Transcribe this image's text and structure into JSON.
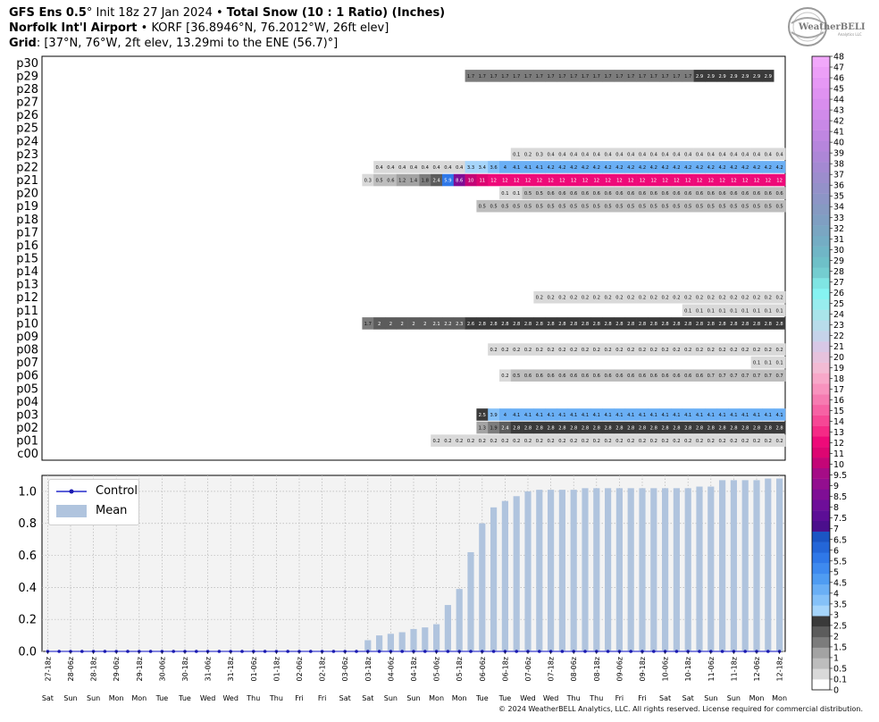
{
  "header": {
    "model": "GFS Ens 0.5",
    "init_text": "Init 18z 27 Jan 2024",
    "product": "Total Snow (10 : 1 Ratio) (Inches)",
    "station_name": "Norfolk Int'l Airport",
    "station_info": "KORF [36.8946°N, 76.2012°W, 26ft elev]",
    "grid_label": "Grid",
    "grid_info": "[37°N, 76°W, 2ft elev, 13.29mi to the ENE (56.7)°]"
  },
  "logo": {
    "text": "WeatherBELL",
    "sub": "Analytics LLC"
  },
  "copyright": "© 2024 WeatherBELL Analytics, LLC. All rights reserved. License required for commercial distribution.",
  "colorbar": {
    "ticks": [
      "0",
      "0.1",
      "0.5",
      "1",
      "1.5",
      "2",
      "2.5",
      "3",
      "3.5",
      "4",
      "4.5",
      "5",
      "5.5",
      "6",
      "6.5",
      "7",
      "7.5",
      "8",
      "8.5",
      "9",
      "9.5",
      "10",
      "11",
      "12",
      "13",
      "14",
      "15",
      "16",
      "17",
      "18",
      "19",
      "20",
      "21",
      "22",
      "23",
      "24",
      "25",
      "26",
      "27",
      "28",
      "29",
      "30",
      "31",
      "32",
      "33",
      "34",
      "35",
      "36",
      "37",
      "38",
      "39",
      "40",
      "41",
      "42",
      "43",
      "44",
      "45",
      "46",
      "47",
      "48"
    ],
    "colors": [
      "#ffffff",
      "#d9d9d9",
      "#bdbdbd",
      "#a3a3a3",
      "#7c7c7c",
      "#5c5c5c",
      "#3a3a3a",
      "#a6d5fb",
      "#85c1f8",
      "#6aaff5",
      "#4f9cf2",
      "#3e8aef",
      "#2f78e8",
      "#2466d8",
      "#1b55c4",
      "#4b0f8c",
      "#5c0e96",
      "#6e0e99",
      "#7f0e95",
      "#930e8f",
      "#a50c86",
      "#c30677",
      "#dd0672",
      "#ee0a79",
      "#f52a86",
      "#f64795",
      "#f662a4",
      "#f67bb1",
      "#f893be",
      "#f7a8c9",
      "#f2bbd4",
      "#e6c2dd",
      "#d8c8e6",
      "#c6d3ea",
      "#b8dcea",
      "#a9e4ea",
      "#98edee",
      "#86f3f2",
      "#7fe5e3",
      "#74cdd0",
      "#6ec0c8",
      "#70b6c6",
      "#74adc4",
      "#7aa6c2",
      "#7f9fc2",
      "#869ac2",
      "#8d95c6",
      "#9491c9",
      "#9c8dcd",
      "#a489d2",
      "#ad86d7",
      "#b685dc",
      "#bf86e1",
      "#c888e6",
      "#d08aea",
      "#d88dee",
      "#df92f1",
      "#e698f5",
      "#ec9ff7",
      "#f1a8fa"
    ]
  },
  "legend": {
    "control_label": "Control",
    "mean_label": "Mean"
  },
  "time_labels": [
    "27-18z",
    "28-06z",
    "28-18z",
    "29-06z",
    "29-18z",
    "30-06z",
    "30-18z",
    "31-06z",
    "31-18z",
    "01-06z",
    "01-18z",
    "02-06z",
    "02-18z",
    "03-06z",
    "03-18z",
    "04-06z",
    "04-18z",
    "05-06z",
    "05-18z",
    "06-06z",
    "06-18z",
    "07-06z",
    "07-18z",
    "08-06z",
    "08-18z",
    "09-06z",
    "09-18z",
    "10-06z",
    "10-18z",
    "11-06z",
    "11-18z",
    "12-06z",
    "12-18z"
  ],
  "day_labels": [
    "Sat",
    "Sun",
    "Sun",
    "Mon",
    "Mon",
    "Tue",
    "Tue",
    "Wed",
    "Wed",
    "Thu",
    "Thu",
    "Fri",
    "Fri",
    "Sat",
    "Sat",
    "Sun",
    "Sun",
    "Mon",
    "Mon",
    "Tue",
    "Tue",
    "Wed",
    "Wed",
    "Thu",
    "Thu",
    "Fri",
    "Fri",
    "Sat",
    "Sat",
    "Sun",
    "Sun",
    "Mon",
    "Mon"
  ],
  "chart_data": [
    {
      "type": "heatmap",
      "title": "Total Snow (10 : 1 Ratio) (Inches)",
      "rows": [
        "p30",
        "p29",
        "p28",
        "p27",
        "p26",
        "p25",
        "p24",
        "p23",
        "p22",
        "p21",
        "p20",
        "p19",
        "p18",
        "p17",
        "p16",
        "p15",
        "p14",
        "p13",
        "p12",
        "p11",
        "p10",
        "p09",
        "p08",
        "p07",
        "p06",
        "p05",
        "p04",
        "p03",
        "p02",
        "p01",
        "c00"
      ],
      "n_times": 65,
      "members": {
        "p29": {
          "start": 37,
          "values": [
            "1.7",
            "1.7",
            "1.7",
            "1.7",
            "1.7",
            "1.7",
            "1.7",
            "1.7",
            "1.7",
            "1.7",
            "1.7",
            "1.7",
            "1.7",
            "1.7",
            "1.7",
            "1.7",
            "1.7",
            "1.7",
            "1.7",
            "1.7",
            "2.9",
            "2.9",
            "2.9",
            "2.9",
            "2.9",
            "2.9",
            "2.9"
          ]
        },
        "p23": {
          "start": 41,
          "values": [
            "0.1",
            "0.2",
            "0.3",
            "0.4",
            "0.4",
            "0.4",
            "0.4",
            "0.4",
            "0.4",
            "0.4",
            "0.4",
            "0.4",
            "0.4",
            "0.4",
            "0.4",
            "0.4",
            "0.4",
            "0.4",
            "0.4",
            "0.4",
            "0.4",
            "0.4",
            "0.4",
            "0.4"
          ]
        },
        "p22": {
          "start": 29,
          "values": [
            "0.4",
            "0.4",
            "0.4",
            "0.4",
            "0.4",
            "0.4",
            "0.4",
            "0.4",
            "3.3",
            "3.4",
            "3.6",
            "4",
            "4.1",
            "4.1",
            "4.1",
            "4.2",
            "4.2",
            "4.2",
            "4.2",
            "4.2",
            "4.2",
            "4.2",
            "4.2",
            "4.2",
            "4.2",
            "4.2",
            "4.2",
            "4.2",
            "4.2",
            "4.2",
            "4.2",
            "4.2",
            "4.2",
            "4.2",
            "4.2",
            "4.2"
          ]
        },
        "p21": {
          "start": 28,
          "values": [
            "0.3",
            "0.5",
            "0.6",
            "1.2",
            "1.4",
            "1.8",
            "2.4",
            "5.9",
            "8.6",
            "10",
            "11",
            "12",
            "12",
            "12",
            "12",
            "12",
            "12",
            "12",
            "12",
            "12",
            "12",
            "12",
            "12",
            "12",
            "12",
            "12",
            "12",
            "12",
            "12",
            "12",
            "12",
            "12",
            "12",
            "12",
            "12",
            "12",
            "12"
          ]
        },
        "p20": {
          "start": 40,
          "values": [
            "0.1",
            "0.1",
            "0.5",
            "0.5",
            "0.6",
            "0.6",
            "0.6",
            "0.6",
            "0.6",
            "0.6",
            "0.6",
            "0.6",
            "0.6",
            "0.6",
            "0.6",
            "0.6",
            "0.6",
            "0.6",
            "0.6",
            "0.6",
            "0.6",
            "0.6",
            "0.6",
            "0.6",
            "0.6"
          ]
        },
        "p19": {
          "start": 38,
          "values": [
            "0.5",
            "0.5",
            "0.5",
            "0.5",
            "0.5",
            "0.5",
            "0.5",
            "0.5",
            "0.5",
            "0.5",
            "0.5",
            "0.5",
            "0.5",
            "0.5",
            "0.5",
            "0.5",
            "0.5",
            "0.5",
            "0.5",
            "0.5",
            "0.5",
            "0.5",
            "0.5",
            "0.5",
            "0.5",
            "0.5",
            "0.5"
          ]
        },
        "p12": {
          "start": 43,
          "values": [
            "0.2",
            "0.2",
            "0.2",
            "0.2",
            "0.2",
            "0.2",
            "0.2",
            "0.2",
            "0.2",
            "0.2",
            "0.2",
            "0.2",
            "0.2",
            "0.2",
            "0.2",
            "0.2",
            "0.2",
            "0.2",
            "0.2",
            "0.2",
            "0.2",
            "0.2"
          ]
        },
        "p11": {
          "start": 56,
          "values": [
            "0.1",
            "0.1",
            "0.1",
            "0.1",
            "0.1",
            "0.1",
            "0.1",
            "0.1",
            "0.1"
          ]
        },
        "p10": {
          "start": 28,
          "values": [
            "1.7",
            "2",
            "2",
            "2",
            "2",
            "2",
            "2.1",
            "2.2",
            "2.3",
            "2.6",
            "2.8",
            "2.8",
            "2.8",
            "2.8",
            "2.8",
            "2.8",
            "2.8",
            "2.8",
            "2.8",
            "2.8",
            "2.8",
            "2.8",
            "2.8",
            "2.8",
            "2.8",
            "2.8",
            "2.8",
            "2.8",
            "2.8",
            "2.8",
            "2.8",
            "2.8",
            "2.8",
            "2.8",
            "2.8",
            "2.8",
            "2.8"
          ]
        },
        "p08": {
          "start": 39,
          "values": [
            "0.2",
            "0.2",
            "0.2",
            "0.2",
            "0.2",
            "0.2",
            "0.2",
            "0.2",
            "0.2",
            "0.2",
            "0.2",
            "0.2",
            "0.2",
            "0.2",
            "0.2",
            "0.2",
            "0.2",
            "0.2",
            "0.2",
            "0.2",
            "0.2",
            "0.2",
            "0.2",
            "0.2",
            "0.2",
            "0.2"
          ]
        },
        "p07": {
          "start": 62,
          "values": [
            "0.1",
            "0.1",
            "0.1"
          ]
        },
        "p06": {
          "start": 40,
          "values": [
            "0.2",
            "0.5",
            "0.6",
            "0.6",
            "0.6",
            "0.6",
            "0.6",
            "0.6",
            "0.6",
            "0.6",
            "0.6",
            "0.6",
            "0.6",
            "0.6",
            "0.6",
            "0.6",
            "0.6",
            "0.6",
            "0.7",
            "0.7",
            "0.7",
            "0.7",
            "0.7",
            "0.7",
            "0.7"
          ]
        },
        "p03": {
          "start": 38,
          "values": [
            "2.5",
            "3.9",
            "4",
            "4.1",
            "4.1",
            "4.1",
            "4.1",
            "4.1",
            "4.1",
            "4.1",
            "4.1",
            "4.1",
            "4.1",
            "4.1",
            "4.1",
            "4.1",
            "4.1",
            "4.1",
            "4.1",
            "4.1",
            "4.1",
            "4.1",
            "4.1",
            "4.1",
            "4.1",
            "4.1",
            "4.1"
          ]
        },
        "p02": {
          "start": 38,
          "values": [
            "1.3",
            "1.9",
            "2.4",
            "2.8",
            "2.8",
            "2.8",
            "2.8",
            "2.8",
            "2.8",
            "2.8",
            "2.8",
            "2.8",
            "2.8",
            "2.8",
            "2.8",
            "2.8",
            "2.8",
            "2.8",
            "2.8",
            "2.8",
            "2.8",
            "2.8",
            "2.8",
            "2.8",
            "2.8",
            "2.8",
            "2.8"
          ]
        },
        "p01": {
          "start": 34,
          "values": [
            "0.2",
            "0.2",
            "0.2",
            "0.2",
            "0.2",
            "0.2",
            "0.2",
            "0.2",
            "0.2",
            "0.2",
            "0.2",
            "0.2",
            "0.2",
            "0.2",
            "0.2",
            "0.2",
            "0.2",
            "0.2",
            "0.2",
            "0.2",
            "0.2",
            "0.2",
            "0.2",
            "0.2",
            "0.2",
            "0.2",
            "0.2",
            "0.2",
            "0.2",
            "0.2",
            "0.2"
          ]
        }
      }
    },
    {
      "type": "bar",
      "ylim": [
        0,
        1.1
      ],
      "yticks": [
        "0.0",
        "0.2",
        "0.4",
        "0.6",
        "0.8",
        "1.0"
      ],
      "series": [
        {
          "name": "Mean",
          "values": [
            0,
            0,
            0,
            0,
            0,
            0,
            0,
            0,
            0,
            0,
            0,
            0,
            0,
            0,
            0,
            0,
            0,
            0,
            0,
            0,
            0,
            0,
            0,
            0,
            0,
            0,
            0,
            0,
            0.07,
            0.1,
            0.11,
            0.12,
            0.14,
            0.15,
            0.17,
            0.29,
            0.39,
            0.62,
            0.8,
            0.9,
            0.94,
            0.97,
            1.0,
            1.01,
            1.01,
            1.01,
            1.01,
            1.02,
            1.02,
            1.02,
            1.02,
            1.02,
            1.02,
            1.02,
            1.02,
            1.02,
            1.02,
            1.03,
            1.03,
            1.07,
            1.07,
            1.07,
            1.07,
            1.08,
            1.08
          ]
        },
        {
          "name": "Control",
          "values": [
            0,
            0,
            0,
            0,
            0,
            0,
            0,
            0,
            0,
            0,
            0,
            0,
            0,
            0,
            0,
            0,
            0,
            0,
            0,
            0,
            0,
            0,
            0,
            0,
            0,
            0,
            0,
            0,
            0,
            0,
            0,
            0,
            0,
            0,
            0,
            0,
            0,
            0,
            0,
            0,
            0,
            0,
            0,
            0,
            0,
            0,
            0,
            0,
            0,
            0,
            0,
            0,
            0,
            0,
            0,
            0,
            0,
            0,
            0,
            0,
            0,
            0,
            0,
            0,
            0
          ]
        }
      ]
    }
  ]
}
